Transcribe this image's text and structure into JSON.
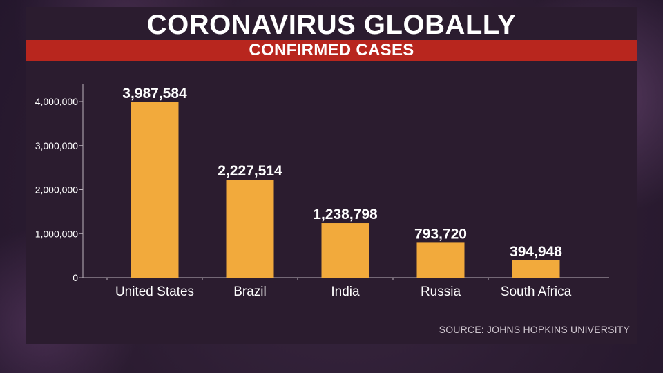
{
  "header": {
    "title": "CORONAVIRUS GLOBALLY",
    "subtitle": "CONFIRMED CASES"
  },
  "source": "SOURCE: JOHNS HOPKINS UNIVERSITY",
  "colors": {
    "bar": "#f2aa3c",
    "banner": "#b8261e",
    "panel": "#2b1c2f"
  },
  "chart_data": {
    "type": "bar",
    "title": "CONFIRMED CASES",
    "xlabel": "",
    "ylabel": "",
    "categories": [
      "United States",
      "Brazil",
      "India",
      "Russia",
      "South Africa"
    ],
    "values": [
      3987584,
      2227514,
      1238798,
      793720,
      394948
    ],
    "data_labels": [
      "3,987,584",
      "2,227,514",
      "1,238,798",
      "793,720",
      "394,948"
    ],
    "yticks": [
      0,
      1000000,
      2000000,
      3000000,
      4000000
    ],
    "ytick_labels": [
      "0",
      "1,000,000",
      "2,000,000",
      "3,000,000",
      "4,000,000"
    ],
    "ylim": [
      0,
      4400000
    ],
    "grid": false,
    "legend": "none"
  }
}
